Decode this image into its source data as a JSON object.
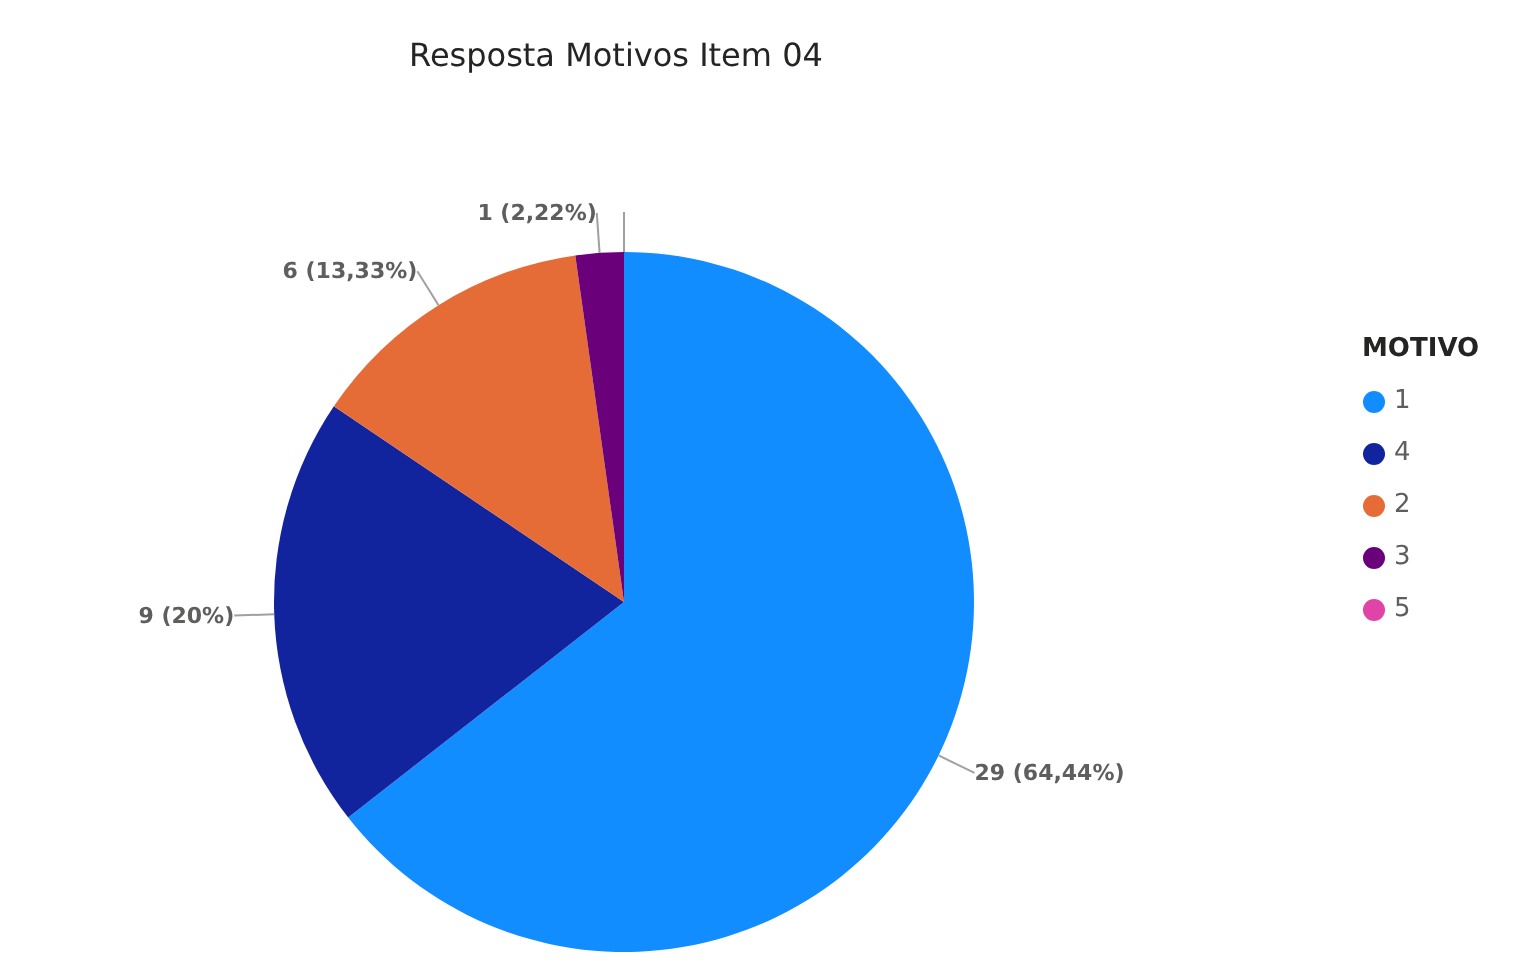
{
  "chart_data": {
    "type": "pie",
    "title": "Resposta Motivos Item 04",
    "legend_title": "MOTIVO",
    "legend": "right",
    "categories": [
      "1",
      "4",
      "2",
      "3",
      "5"
    ],
    "values": [
      29,
      9,
      6,
      1,
      0
    ],
    "colors": [
      "#118dff",
      "#12239e",
      "#e66c37",
      "#6b007b",
      "#e044a7"
    ],
    "value_labels": [
      "29 (64,44%)",
      "9 (20%)",
      "6 (13,33%)",
      "1 (2,22%)",
      null
    ]
  }
}
